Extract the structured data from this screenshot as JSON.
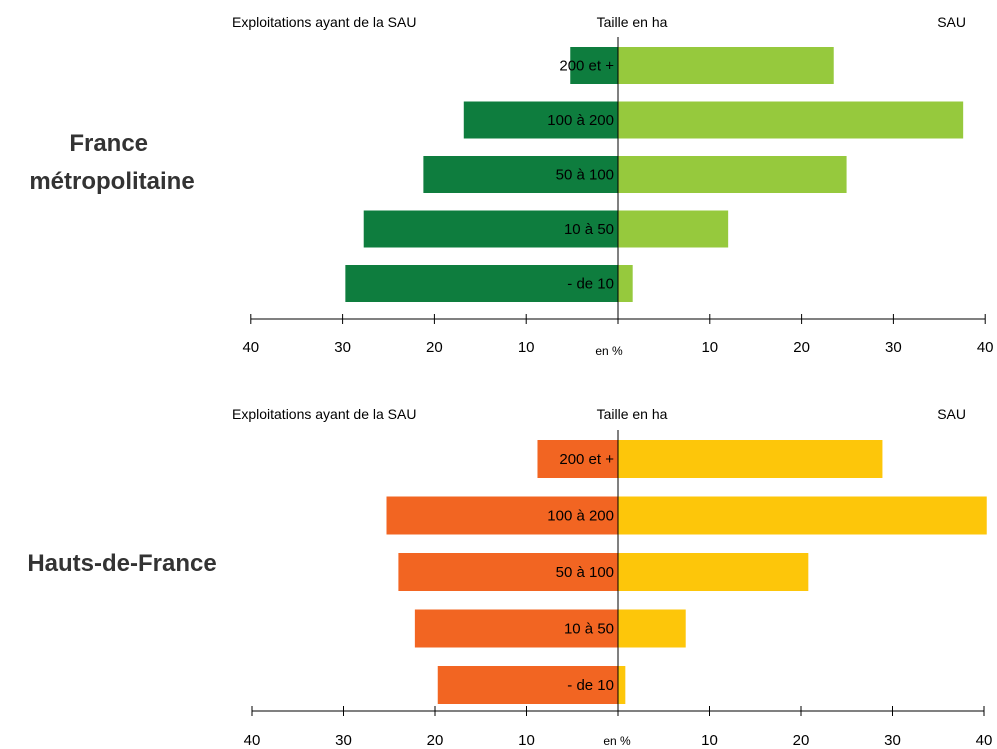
{
  "chart_data": [
    {
      "type": "bar",
      "title": "France\nmétropolitaine",
      "left_header": "Exploitations ayant de la SAU",
      "center_header": "Taille en ha",
      "right_header": "SAU",
      "unit_label": "en %",
      "categories": [
        "200 et +",
        "100 à 200",
        "50 à 100",
        "10 à 50",
        "- de 10"
      ],
      "series": [
        {
          "name": "Exploitations ayant de la SAU",
          "side": "left",
          "values": [
            5.2,
            16.8,
            21.2,
            27.7,
            29.7
          ]
        },
        {
          "name": "SAU",
          "side": "right",
          "values": [
            23.5,
            37.6,
            24.9,
            12.0,
            1.6
          ]
        }
      ],
      "tick_labels": [
        "40",
        "30",
        "20",
        "10",
        "10",
        "20",
        "30",
        "40"
      ],
      "xlim": [
        -40,
        40
      ],
      "colors": {
        "left": "#0e7d3e",
        "right": "#96c93d"
      }
    },
    {
      "type": "bar",
      "title": "Hauts-de-France",
      "left_header": "Exploitations ayant de la SAU",
      "center_header": "Taille en ha",
      "right_header": "SAU",
      "unit_label": "en %",
      "categories": [
        "200 et +",
        "100 à 200",
        "50 à 100",
        "10 à 50",
        "- de 10"
      ],
      "series": [
        {
          "name": "Exploitations ayant de la SAU",
          "side": "left",
          "values": [
            8.8,
            25.3,
            24.0,
            22.2,
            19.7
          ]
        },
        {
          "name": "SAU",
          "side": "right",
          "values": [
            28.9,
            40.3,
            20.8,
            7.4,
            0.8
          ]
        }
      ],
      "tick_labels": [
        "40",
        "30",
        "20",
        "10",
        "10",
        "20",
        "30",
        "40"
      ],
      "xlim": [
        -40,
        40
      ],
      "colors": {
        "left": "#f26522",
        "right": "#fdc60a"
      }
    }
  ]
}
